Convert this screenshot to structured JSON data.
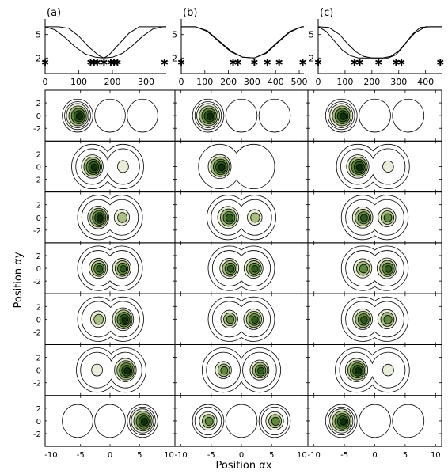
{
  "chart_data": {
    "type": "figure",
    "top_panels": [
      {
        "label": "(a)",
        "xlim": [
          0,
          360
        ],
        "ylim": [
          0,
          7
        ],
        "xticks": [
          "0",
          "100",
          "200",
          "300"
        ],
        "yticks": [
          "2",
          "5"
        ],
        "curves": [
          {
            "x": [
              0,
              40,
              70,
              100,
              130,
              160,
              175,
              190,
              220,
              250,
              280,
              310,
              340,
              360
            ],
            "y": [
              6,
              6,
              5.8,
              4.8,
              3.4,
              2.3,
              2.0,
              2.4,
              3.8,
              5.2,
              6,
              6,
              6,
              6
            ]
          },
          {
            "x": [
              0,
              30,
              60,
              90,
              120,
              150,
              175,
              200,
              230,
              260,
              290,
              320,
              350,
              360
            ],
            "y": [
              6,
              5.6,
              4.6,
              3.4,
              2.5,
              2.1,
              2.0,
              2.1,
              2.6,
              3.6,
              4.8,
              5.7,
              6,
              6
            ]
          }
        ],
        "markers_x": [
          0,
          135,
          145,
          155,
          175,
          195,
          205,
          215,
          355
        ],
        "markers_y": 1.5
      },
      {
        "label": "(b)",
        "xlim": [
          0,
          520
        ],
        "ylim": [
          0,
          7
        ],
        "xticks": [
          "0",
          "100",
          "200",
          "300",
          "400",
          "500"
        ],
        "yticks": [
          "2",
          "5"
        ],
        "curves": [
          {
            "x": [
              0,
              60,
              110,
              160,
              210,
              260,
              310,
              360,
              410,
              460,
              510,
              520
            ],
            "y": [
              6,
              6,
              5.5,
              4.2,
              2.9,
              2.1,
              2.0,
              2.6,
              4.0,
              5.3,
              6,
              6
            ]
          },
          {
            "x": [
              0,
              60,
              110,
              160,
              210,
              260,
              310,
              360,
              410,
              460,
              510,
              520
            ],
            "y": [
              6,
              6,
              5.4,
              4.1,
              2.8,
              2.1,
              2.0,
              2.7,
              4.1,
              5.4,
              6,
              6
            ]
          }
        ],
        "markers_x": [
          0,
          220,
          240,
          310,
          365,
          415,
          515
        ],
        "markers_y": 1.5
      },
      {
        "label": "(c)",
        "xlim": [
          0,
          460
        ],
        "ylim": [
          0,
          7
        ],
        "xticks": [
          "0",
          "100",
          "200",
          "300",
          "400"
        ],
        "yticks": [
          "2",
          "5"
        ],
        "curves": [
          {
            "x": [
              0,
              40,
              80,
              110,
              140,
              170,
              200,
              230,
              260,
              290,
              320,
              350,
              380,
              420,
              460
            ],
            "y": [
              6,
              5.9,
              5.0,
              3.8,
              2.8,
              2.2,
              2.0,
              2.0,
              2.0,
              2.4,
              3.6,
              5.0,
              5.9,
              6,
              6
            ]
          },
          {
            "x": [
              0,
              30,
              60,
              90,
              120,
              150,
              180,
              210,
              240,
              270,
              300,
              330,
              360,
              400,
              460
            ],
            "y": [
              6,
              5.4,
              4.2,
              3.0,
              2.3,
              2.0,
              2.0,
              2.0,
              2.0,
              2.2,
              2.9,
              4.1,
              5.2,
              6,
              6
            ]
          }
        ],
        "markers_x": [
          0,
          135,
          155,
          225,
          290,
          310,
          455
        ],
        "markers_y": 1.5
      }
    ],
    "grid": {
      "rows": 7,
      "cols": 3,
      "xlim": [
        -11,
        11
      ],
      "ylim": [
        -4,
        4
      ],
      "xticks": [
        "-10",
        "-5",
        "0",
        "5",
        "10"
      ],
      "yticks": [
        "2",
        "0",
        "-2"
      ],
      "xlabel": "Position αx",
      "ylabel": "Position αy",
      "wells_x": [
        -5.5,
        0,
        5.5
      ],
      "cells": [
        [
          {
            "wells": [
              {
                "x": -5.5,
                "a": 1.0
              },
              {
                "x": 0,
                "a": 0
              },
              {
                "x": 5.5,
                "a": 0
              }
            ]
          },
          {
            "wells": [
              {
                "x": -5.5,
                "a": 1.0
              },
              {
                "x": 0,
                "a": 0
              },
              {
                "x": 5.5,
                "a": 0
              }
            ]
          },
          {
            "wells": [
              {
                "x": -5.5,
                "a": 1.0
              },
              {
                "x": 0,
                "a": 0
              },
              {
                "x": 5.5,
                "a": 0
              }
            ]
          }
        ],
        [
          {
            "wells": [
              {
                "x": -3.0,
                "a": 0.95
              },
              {
                "x": 2.2,
                "a": 0.12
              }
            ]
          },
          {
            "wells": [
              {
                "x": -3.6,
                "a": 1.0
              },
              {
                "x": 2.0,
                "a": 0
              }
            ]
          },
          {
            "wells": [
              {
                "x": -2.8,
                "a": 0.95
              },
              {
                "x": 2.2,
                "a": 0.08
              }
            ]
          }
        ],
        [
          {
            "wells": [
              {
                "x": -2.0,
                "a": 0.9
              },
              {
                "x": 2.0,
                "a": 0.45
              }
            ]
          },
          {
            "wells": [
              {
                "x": -2.2,
                "a": 0.85
              },
              {
                "x": 2.2,
                "a": 0.38
              }
            ]
          },
          {
            "wells": [
              {
                "x": -2.0,
                "a": 0.8
              },
              {
                "x": 2.0,
                "a": 0.6
              }
            ]
          }
        ],
        [
          {
            "wells": [
              {
                "x": -2.0,
                "a": 0.7
              },
              {
                "x": 2.0,
                "a": 0.7
              }
            ]
          },
          {
            "wells": [
              {
                "x": -2.0,
                "a": 0.7
              },
              {
                "x": 2.0,
                "a": 0.7
              }
            ]
          },
          {
            "wells": [
              {
                "x": -2.0,
                "a": 0.65
              },
              {
                "x": 2.0,
                "a": 0.75
              }
            ]
          }
        ],
        [
          {
            "wells": [
              {
                "x": -2.0,
                "a": 0.45
              },
              {
                "x": 2.2,
                "a": 0.9
              }
            ]
          },
          {
            "wells": [
              {
                "x": -2.0,
                "a": 0.55
              },
              {
                "x": 2.0,
                "a": 0.75
              }
            ]
          },
          {
            "wells": [
              {
                "x": -2.0,
                "a": 0.75
              },
              {
                "x": 2.0,
                "a": 0.65
              }
            ]
          }
        ],
        [
          {
            "wells": [
              {
                "x": -2.2,
                "a": 0.12
              },
              {
                "x": 2.6,
                "a": 0.95
              }
            ]
          },
          {
            "wells": [
              {
                "x": -3.0,
                "a": 0.5
              },
              {
                "x": 3.0,
                "a": 0.7
              }
            ]
          },
          {
            "wells": [
              {
                "x": -3.0,
                "a": 0.95
              },
              {
                "x": 2.2,
                "a": 0.1
              }
            ]
          }
        ],
        [
          {
            "wells": [
              {
                "x": -5.5,
                "a": 0
              },
              {
                "x": 0,
                "a": 0
              },
              {
                "x": 5.5,
                "a": 1.0
              }
            ]
          },
          {
            "wells": [
              {
                "x": -5.5,
                "a": 0.6
              },
              {
                "x": 0,
                "a": 0
              },
              {
                "x": 5.5,
                "a": 0.6
              }
            ]
          },
          {
            "wells": [
              {
                "x": -5.5,
                "a": 1.0
              },
              {
                "x": 0,
                "a": 0
              },
              {
                "x": 5.5,
                "a": 0
              }
            ]
          }
        ]
      ]
    },
    "colors": {
      "ring1": "#e9eed9",
      "ring2": "#a9bf82",
      "ring3": "#5e8a3a",
      "ring4": "#2f5a1e",
      "ring5": "#0f2f0b"
    }
  }
}
